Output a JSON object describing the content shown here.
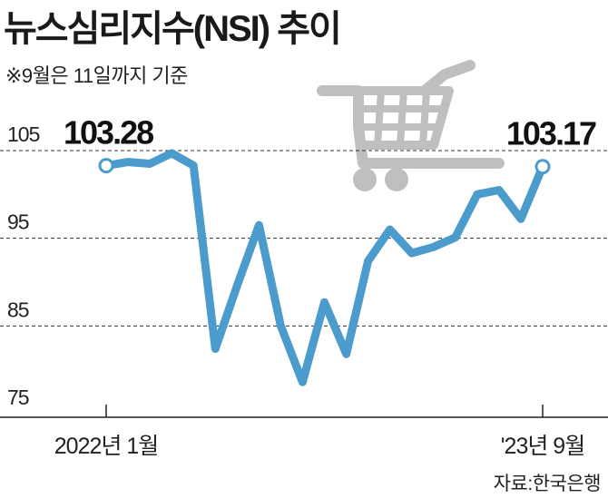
{
  "title": "뉴스심리지수(NSI) 추이",
  "subtitle": "※9월은 11일까지 기준",
  "source": "자료:한국은행",
  "chart_data": {
    "type": "line",
    "title": "뉴스심리지수(NSI) 추이",
    "xlabel": "",
    "ylabel": "",
    "ylim": [
      75,
      108
    ],
    "yticks": [
      105,
      95,
      85,
      75
    ],
    "x_tick_labels": [
      "2022년 1월",
      "'23년 9월"
    ],
    "grid": true,
    "series": [
      {
        "values": [
          103.28,
          103.7,
          103.5,
          104.7,
          103.3,
          82.4,
          89.6,
          96.5,
          85.0,
          78.6,
          87.7,
          81.8,
          92.4,
          96.0,
          93.3,
          94.0,
          95.1,
          100.0,
          100.5,
          97.2,
          103.17
        ]
      }
    ],
    "data_labels": [
      {
        "index": 0,
        "text": "103.28"
      },
      {
        "index": 20,
        "text": "103.17"
      }
    ],
    "colors": {
      "line": "#4b9ccc",
      "grid": "#333333",
      "marker_fill": "#ffffff",
      "cart": "#bfbfbf"
    }
  }
}
